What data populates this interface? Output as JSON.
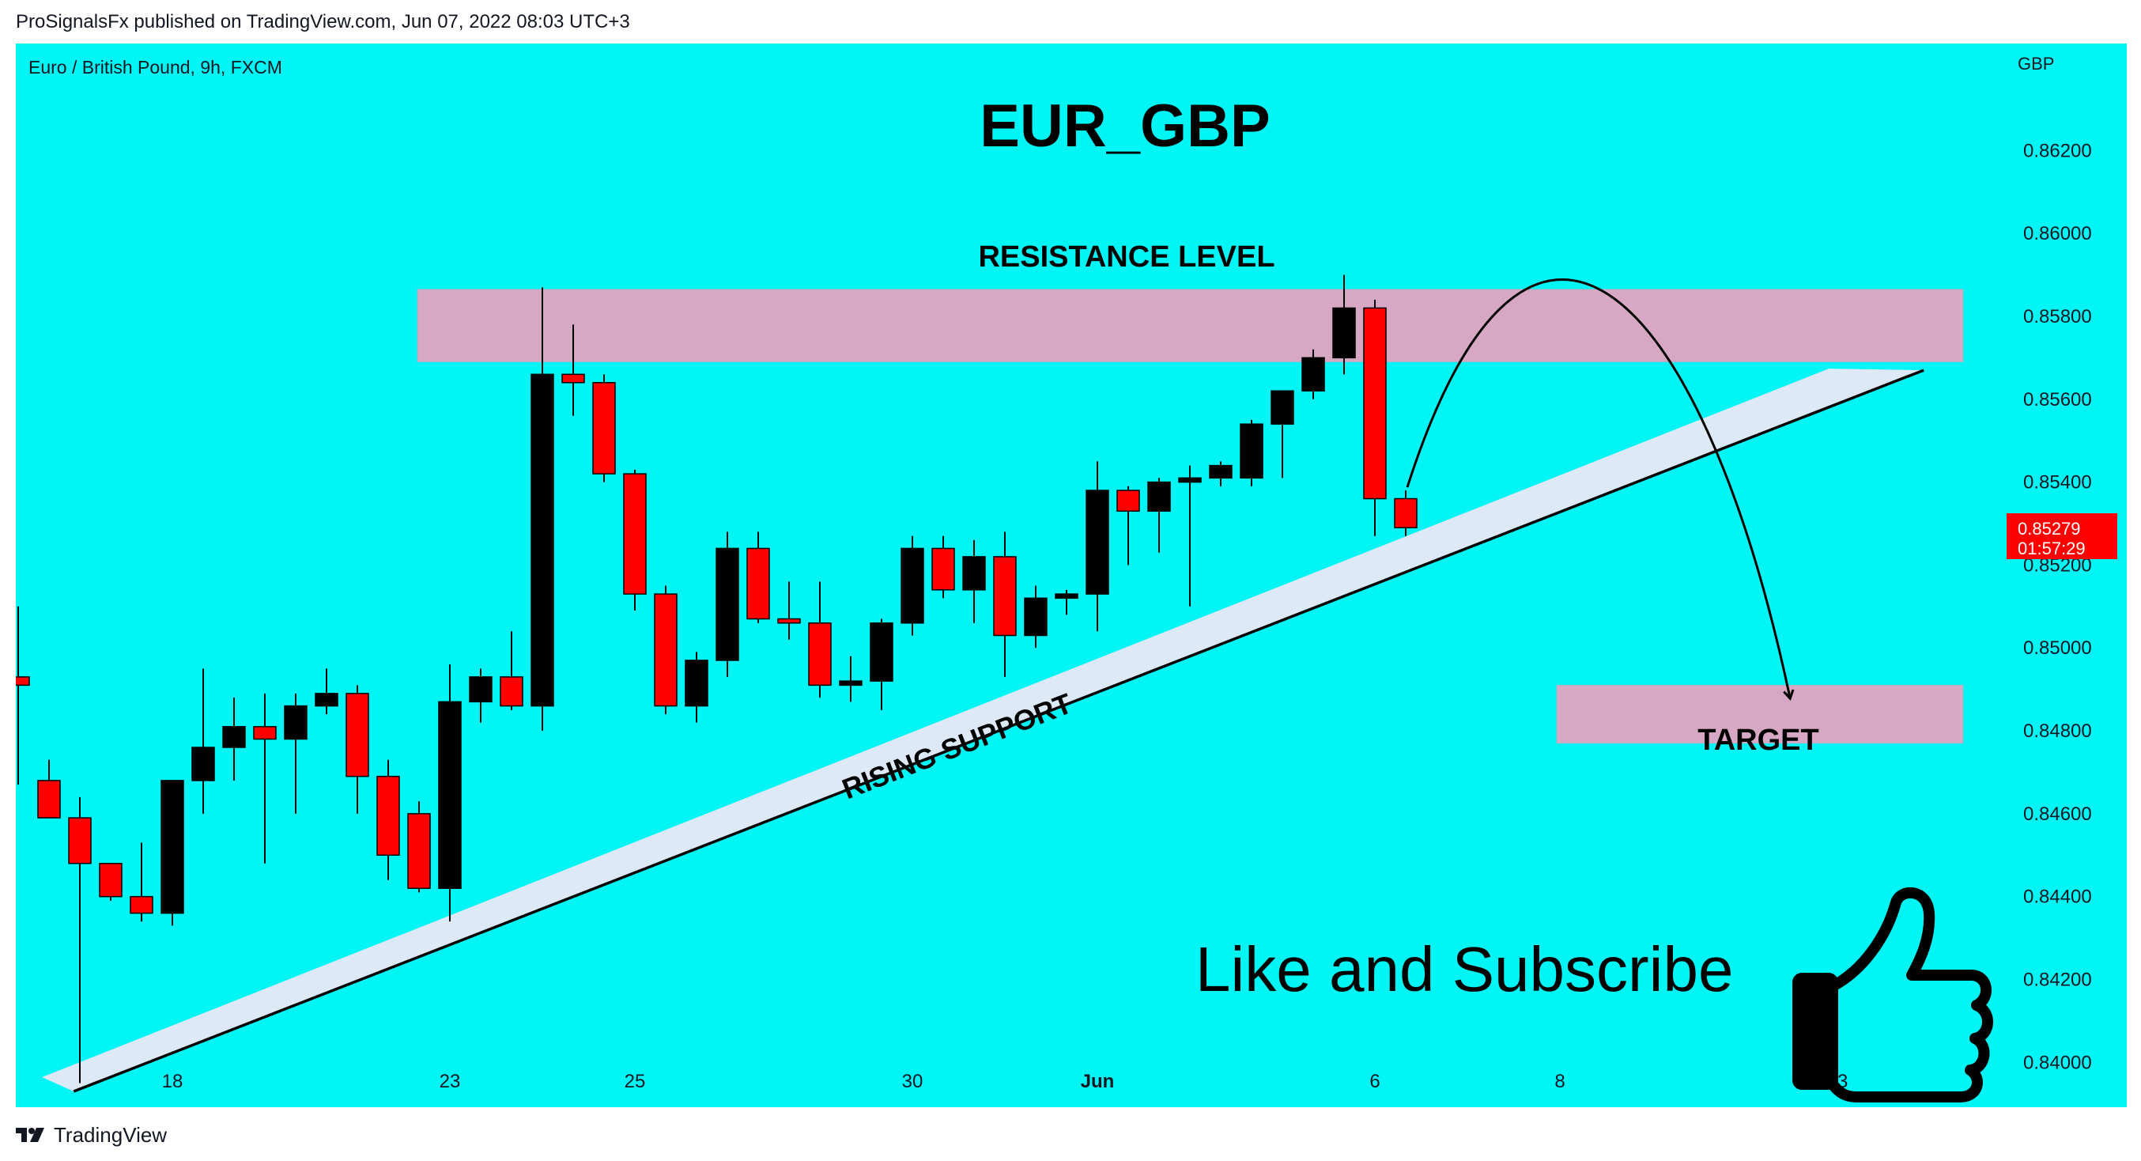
{
  "header": {
    "publisher_line": "ProSignalsFx published on TradingView.com, Jun 07, 2022 08:03 UTC+3"
  },
  "footer": {
    "brand": "TradingView",
    "logo_icon": "tradingview-logo-icon"
  },
  "colors": {
    "background": "#00f5f5",
    "bull_candle": "#000000",
    "bear_candle": "#ff0000",
    "zone": "#d7a8c4",
    "support_band": "#dde9f7",
    "price_badge": "#ff0000"
  },
  "chart_data": {
    "type": "candlestick",
    "symbol_label": "Euro / British Pound, 9h, FXCM",
    "title": "EUR_GBP",
    "currency": "GBP",
    "ylim": [
      0.8393,
      0.8642
    ],
    "y_ticks": [
      "0.84000",
      "0.84200",
      "0.84400",
      "0.84600",
      "0.84800",
      "0.85000",
      "0.85200",
      "0.85400",
      "0.85600",
      "0.85800",
      "0.86000",
      "0.86200"
    ],
    "x_ticks": [
      {
        "label": "18",
        "bar": 5
      },
      {
        "label": "23",
        "bar": 14
      },
      {
        "label": "25",
        "bar": 20
      },
      {
        "label": "30",
        "bar": 29
      },
      {
        "label": "Jun",
        "bar": 35
      },
      {
        "label": "6",
        "bar": 44
      },
      {
        "label": "8",
        "bar": 50
      },
      {
        "label": "13",
        "bar": 59
      }
    ],
    "candles": [
      {
        "o": 0.8493,
        "h": 0.851,
        "l": 0.8467,
        "c": 0.8491
      },
      {
        "o": 0.8468,
        "h": 0.8473,
        "l": 0.846,
        "c": 0.8459
      },
      {
        "o": 0.8459,
        "h": 0.8464,
        "l": 0.8395,
        "c": 0.8448
      },
      {
        "o": 0.8448,
        "h": 0.8448,
        "l": 0.8439,
        "c": 0.844
      },
      {
        "o": 0.844,
        "h": 0.8453,
        "l": 0.8434,
        "c": 0.8436
      },
      {
        "o": 0.8436,
        "h": 0.8468,
        "l": 0.8433,
        "c": 0.8468
      },
      {
        "o": 0.8468,
        "h": 0.8495,
        "l": 0.846,
        "c": 0.8476
      },
      {
        "o": 0.8476,
        "h": 0.8488,
        "l": 0.8468,
        "c": 0.8481
      },
      {
        "o": 0.8481,
        "h": 0.8489,
        "l": 0.8448,
        "c": 0.8478
      },
      {
        "o": 0.8478,
        "h": 0.8489,
        "l": 0.846,
        "c": 0.8486
      },
      {
        "o": 0.8486,
        "h": 0.8495,
        "l": 0.8484,
        "c": 0.8489
      },
      {
        "o": 0.8489,
        "h": 0.8491,
        "l": 0.846,
        "c": 0.8469
      },
      {
        "o": 0.8469,
        "h": 0.8473,
        "l": 0.8444,
        "c": 0.845
      },
      {
        "o": 0.846,
        "h": 0.8463,
        "l": 0.8441,
        "c": 0.8442
      },
      {
        "o": 0.8442,
        "h": 0.8496,
        "l": 0.8434,
        "c": 0.8487
      },
      {
        "o": 0.8487,
        "h": 0.8495,
        "l": 0.8482,
        "c": 0.8493
      },
      {
        "o": 0.8493,
        "h": 0.8504,
        "l": 0.8485,
        "c": 0.8486
      },
      {
        "o": 0.8486,
        "h": 0.8587,
        "l": 0.848,
        "c": 0.8566
      },
      {
        "o": 0.8566,
        "h": 0.8578,
        "l": 0.8556,
        "c": 0.8564
      },
      {
        "o": 0.8564,
        "h": 0.8566,
        "l": 0.854,
        "c": 0.8542
      },
      {
        "o": 0.8542,
        "h": 0.8543,
        "l": 0.8509,
        "c": 0.8513
      },
      {
        "o": 0.8513,
        "h": 0.8515,
        "l": 0.8484,
        "c": 0.8486
      },
      {
        "o": 0.8486,
        "h": 0.8499,
        "l": 0.8482,
        "c": 0.8497
      },
      {
        "o": 0.8497,
        "h": 0.8528,
        "l": 0.8493,
        "c": 0.8524
      },
      {
        "o": 0.8524,
        "h": 0.8528,
        "l": 0.8506,
        "c": 0.8507
      },
      {
        "o": 0.8507,
        "h": 0.8516,
        "l": 0.8502,
        "c": 0.8506
      },
      {
        "o": 0.8506,
        "h": 0.8516,
        "l": 0.8488,
        "c": 0.8491
      },
      {
        "o": 0.8491,
        "h": 0.8498,
        "l": 0.8487,
        "c": 0.8492
      },
      {
        "o": 0.8492,
        "h": 0.8507,
        "l": 0.8485,
        "c": 0.8506
      },
      {
        "o": 0.8506,
        "h": 0.8527,
        "l": 0.8503,
        "c": 0.8524
      },
      {
        "o": 0.8524,
        "h": 0.8527,
        "l": 0.8512,
        "c": 0.8514
      },
      {
        "o": 0.8514,
        "h": 0.8526,
        "l": 0.8506,
        "c": 0.8522
      },
      {
        "o": 0.8522,
        "h": 0.8528,
        "l": 0.8493,
        "c": 0.8503
      },
      {
        "o": 0.8503,
        "h": 0.8515,
        "l": 0.85,
        "c": 0.8512
      },
      {
        "o": 0.8512,
        "h": 0.8514,
        "l": 0.8508,
        "c": 0.8513
      },
      {
        "o": 0.8513,
        "h": 0.8545,
        "l": 0.8504,
        "c": 0.8538
      },
      {
        "o": 0.8538,
        "h": 0.8539,
        "l": 0.852,
        "c": 0.8533
      },
      {
        "o": 0.8533,
        "h": 0.8541,
        "l": 0.8523,
        "c": 0.854
      },
      {
        "o": 0.854,
        "h": 0.8544,
        "l": 0.851,
        "c": 0.8541
      },
      {
        "o": 0.8541,
        "h": 0.8545,
        "l": 0.8539,
        "c": 0.8544
      },
      {
        "o": 0.8541,
        "h": 0.8555,
        "l": 0.8539,
        "c": 0.8554
      },
      {
        "o": 0.8554,
        "h": 0.8561,
        "l": 0.8541,
        "c": 0.8562
      },
      {
        "o": 0.8562,
        "h": 0.8572,
        "l": 0.856,
        "c": 0.857
      },
      {
        "o": 0.857,
        "h": 0.859,
        "l": 0.8566,
        "c": 0.8582
      },
      {
        "o": 0.8582,
        "h": 0.8584,
        "l": 0.8527,
        "c": 0.8536
      },
      {
        "o": 0.8536,
        "h": 0.8538,
        "l": 0.8527,
        "c": 0.8529
      }
    ],
    "last_price": {
      "value": 0.85279,
      "label": "0.85279",
      "countdown": "01:57:29"
    },
    "annotations": {
      "resistance": {
        "label": "RESISTANCE LEVEL",
        "from": 0.8569,
        "to": 0.85865
      },
      "target": {
        "label": "TARGET",
        "from": 0.8477,
        "to": 0.8491
      },
      "support": {
        "label": "RISING SUPPORT",
        "start": {
          "bar": 1.8,
          "price": 0.8393
        },
        "end": {
          "bar": 61.8,
          "price": 0.8567
        }
      },
      "cta": {
        "text": "Like and Subscribe",
        "icon": "thumbs-up-icon"
      }
    }
  }
}
